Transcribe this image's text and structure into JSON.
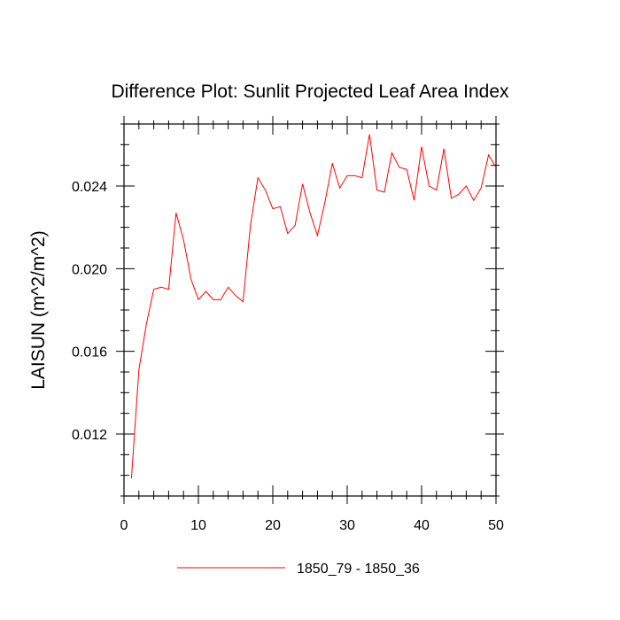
{
  "chart_data": {
    "type": "line",
    "title": "Difference Plot: Sunlit Projected Leaf Area Index",
    "xlabel": "",
    "ylabel": "LAISUN  (m^2/m^2)",
    "xlim": [
      0,
      50
    ],
    "ylim": [
      0.009,
      0.027
    ],
    "x_ticks": [
      0,
      10,
      20,
      30,
      40,
      50
    ],
    "x_tick_labels": [
      "0",
      "10",
      "20",
      "30",
      "40",
      "50"
    ],
    "y_ticks": [
      0.012,
      0.016,
      0.02,
      0.024
    ],
    "y_tick_labels": [
      "0.012",
      "0.016",
      "0.020",
      "0.024"
    ],
    "x_minor_step": 2,
    "y_minor_step": 0.001,
    "grid": false,
    "legend_position": "bottom-center",
    "series": [
      {
        "name": "1850_79 - 1850_36",
        "color": "#ff0000",
        "x": [
          1,
          2,
          3,
          4,
          5,
          6,
          7,
          8,
          9,
          10,
          11,
          12,
          13,
          14,
          15,
          16,
          17,
          18,
          19,
          20,
          21,
          22,
          23,
          24,
          25,
          26,
          27,
          28,
          29,
          30,
          31,
          32,
          33,
          34,
          35,
          36,
          37,
          38,
          39,
          40,
          41,
          42,
          43,
          44,
          45,
          46,
          47,
          48,
          49,
          50
        ],
        "y": [
          0.00985,
          0.0151,
          0.0173,
          0.019,
          0.0191,
          0.019,
          0.0227,
          0.0214,
          0.0195,
          0.0185,
          0.0189,
          0.0185,
          0.0185,
          0.0191,
          0.0187,
          0.0184,
          0.0221,
          0.0244,
          0.0238,
          0.0229,
          0.023,
          0.0217,
          0.0221,
          0.0241,
          0.0227,
          0.0216,
          0.0232,
          0.0251,
          0.0239,
          0.0245,
          0.0245,
          0.0244,
          0.0265,
          0.0238,
          0.0237,
          0.0256,
          0.0249,
          0.0248,
          0.0233,
          0.0259,
          0.024,
          0.0238,
          0.0258,
          0.0234,
          0.0236,
          0.024,
          0.0233,
          0.0239,
          0.0255,
          0.0249
        ]
      }
    ]
  }
}
